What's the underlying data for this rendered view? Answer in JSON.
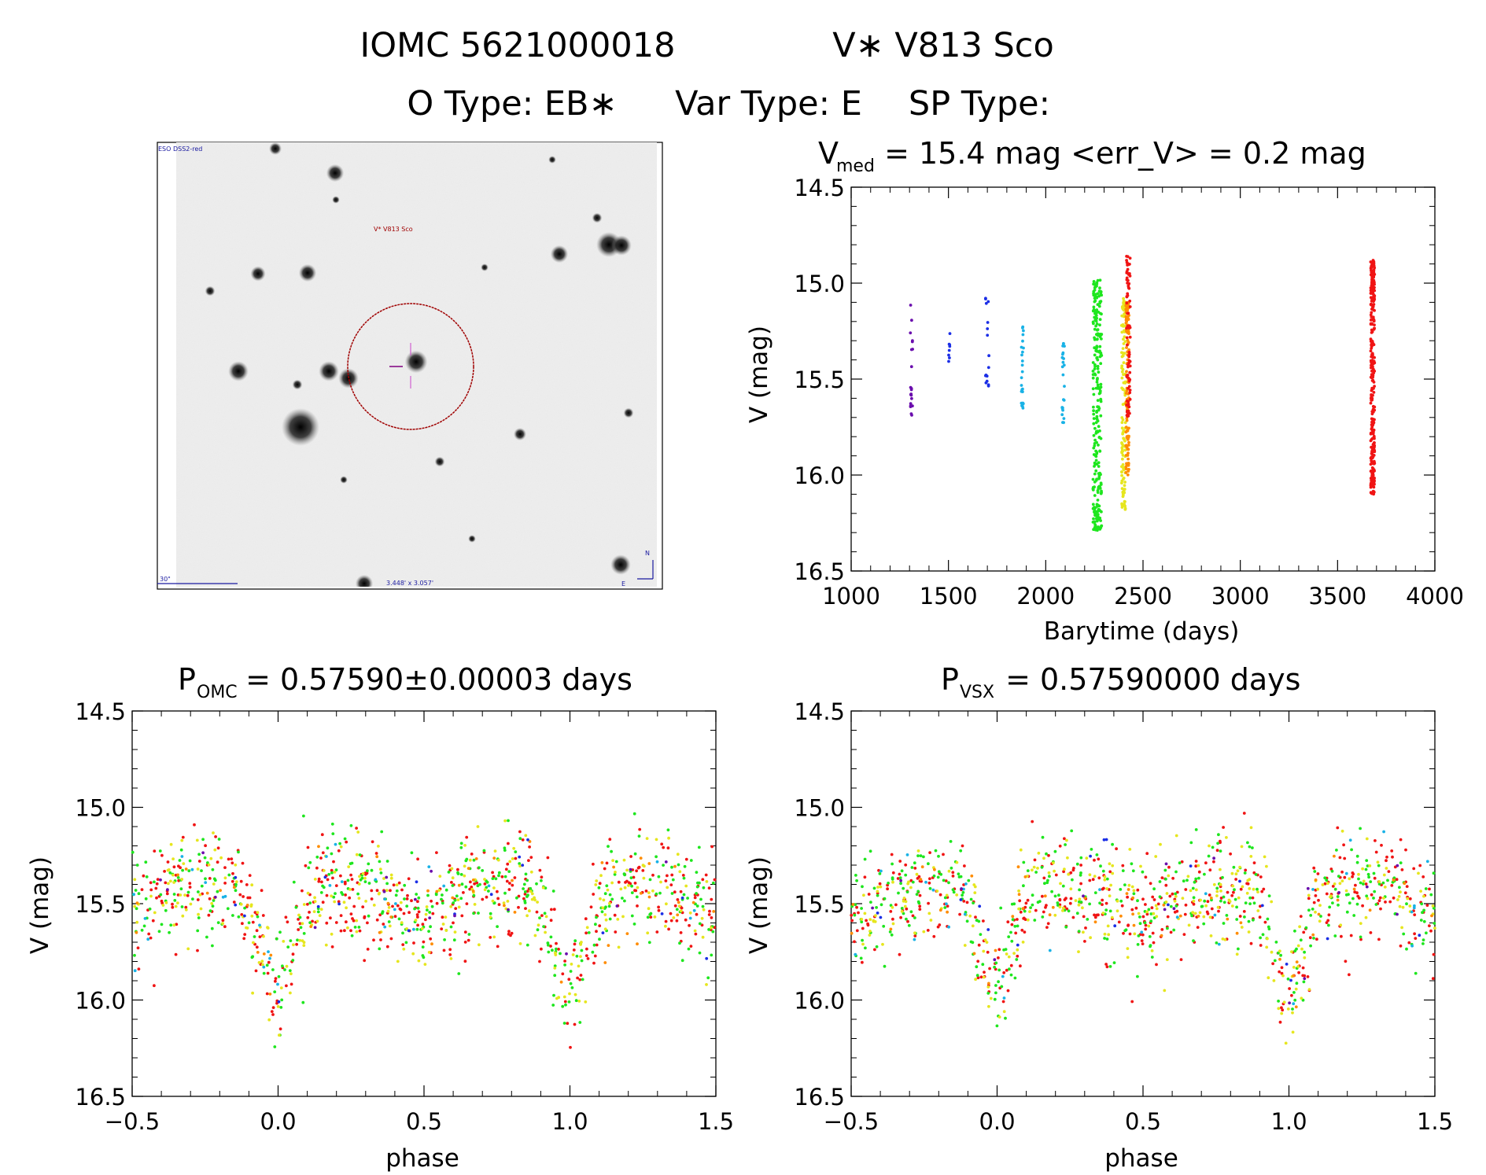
{
  "header": {
    "line1_id": "IOMC 5621000018",
    "line1_name": "V∗ V813 Sco",
    "line2_otype": "O Type: EB∗",
    "line2_vartype": "Var Type: E",
    "line2_sptype": "SP Type:"
  },
  "image_panel": {
    "survey_label": "ESO DSS2-red",
    "object_label": "V* V813 Sco",
    "scale_label": "30\"",
    "fov_label": "3.448' x 3.057'",
    "north_label": "N",
    "east_label": "E"
  },
  "colors": {
    "purple": "#6a0dad",
    "blue": "#1b2ee6",
    "cyan": "#19b2e6",
    "green": "#1ee61e",
    "yellow": "#e6e61e",
    "orange": "#ff8c00",
    "red": "#f01414",
    "dss_text": "#1a1aa0",
    "circle": "#a00000"
  },
  "chart_data": [
    {
      "type": "scatter",
      "title_main": "V",
      "title_sub": "med",
      "title_rest": " = 15.4 mag <err_V> = 0.2 mag",
      "xlabel": "Barytime (days)",
      "ylabel": "V (mag)",
      "xlim": [
        1000,
        4000
      ],
      "ylim": [
        16.5,
        14.5
      ],
      "xticks": [
        "1000",
        "1500",
        "2000",
        "2500",
        "3000",
        "3500",
        "4000"
      ],
      "yticks": [
        "14.5",
        "15.0",
        "15.5",
        "16.0",
        "16.5"
      ],
      "series": [
        {
          "name": "epoch1",
          "color": "#6a0dad",
          "x_center": 1310,
          "x_spread": 6,
          "n": 22,
          "y_min": 15.1,
          "y_max": 15.7
        },
        {
          "name": "epoch2",
          "color": "#1b2ee6",
          "x_center": 1505,
          "x_spread": 4,
          "n": 8,
          "y_min": 15.25,
          "y_max": 15.42
        },
        {
          "name": "epoch3",
          "color": "#1b2ee6",
          "x_center": 1700,
          "x_spread": 10,
          "n": 16,
          "y_min": 15.07,
          "y_max": 15.55
        },
        {
          "name": "epoch4",
          "color": "#19b2e6",
          "x_center": 1880,
          "x_spread": 6,
          "n": 24,
          "y_min": 15.18,
          "y_max": 15.66
        },
        {
          "name": "epoch5",
          "color": "#19b2e6",
          "x_center": 2090,
          "x_spread": 6,
          "n": 24,
          "y_min": 15.3,
          "y_max": 15.73
        },
        {
          "name": "epoch6",
          "color": "#1ee61e",
          "x_center": 2265,
          "x_spread": 22,
          "n": 260,
          "y_min": 14.98,
          "y_max": 16.29
        },
        {
          "name": "epoch7",
          "color": "#e6e61e",
          "x_center": 2400,
          "x_spread": 10,
          "n": 120,
          "y_min": 15.08,
          "y_max": 16.18
        },
        {
          "name": "epoch8",
          "color": "#ff8c00",
          "x_center": 2420,
          "x_spread": 8,
          "n": 120,
          "y_min": 15.1,
          "y_max": 16.0
        },
        {
          "name": "epoch9",
          "color": "#f01414",
          "x_center": 2425,
          "x_spread": 10,
          "n": 80,
          "y_min": 14.86,
          "y_max": 15.7
        },
        {
          "name": "epoch10",
          "color": "#f01414",
          "x_center": 3680,
          "x_spread": 10,
          "n": 300,
          "y_min": 14.88,
          "y_max": 16.1
        }
      ]
    },
    {
      "type": "scatter",
      "title_main": "P",
      "title_sub": "OMC",
      "title_rest": " = 0.57590±0.00003 days",
      "xlabel": "phase",
      "ylabel": "V (mag)",
      "xlim": [
        -0.5,
        1.5
      ],
      "ylim": [
        16.5,
        14.5
      ],
      "xticks": [
        "−0.5",
        "0.0",
        "0.5",
        "1.0",
        "1.5"
      ],
      "yticks": [
        "14.5",
        "15.0",
        "15.5",
        "16.0",
        "16.5"
      ],
      "period_days": 0.5759,
      "model": {
        "baseline_mag": 15.4,
        "primary_min_phase": 0.0,
        "primary_depth": 0.55,
        "secondary_min_phase": 0.5,
        "secondary_depth": 0.15,
        "scatter_mag": 0.18
      },
      "series": [
        {
          "name": "red",
          "color": "#f01414",
          "n": 420
        },
        {
          "name": "green",
          "color": "#1ee61e",
          "n": 380
        },
        {
          "name": "yellow",
          "color": "#e6e61e",
          "n": 260
        },
        {
          "name": "orange",
          "color": "#ff8c00",
          "n": 50
        },
        {
          "name": "cyan",
          "color": "#19b2e6",
          "n": 30
        },
        {
          "name": "blue",
          "color": "#1b2ee6",
          "n": 18
        },
        {
          "name": "purple",
          "color": "#6a0dad",
          "n": 16
        }
      ]
    },
    {
      "type": "scatter",
      "title_main": "P",
      "title_sub": "VSX",
      "title_rest": " = 0.57590000 days",
      "xlabel": "phase",
      "ylabel": "V (mag)",
      "xlim": [
        -0.5,
        1.5
      ],
      "ylim": [
        16.5,
        14.5
      ],
      "xticks": [
        "−0.5",
        "0.0",
        "0.5",
        "1.0",
        "1.5"
      ],
      "yticks": [
        "14.5",
        "15.0",
        "15.5",
        "16.0",
        "16.5"
      ],
      "period_days": 0.5759,
      "model": {
        "baseline_mag": 15.4,
        "primary_min_phase": 0.0,
        "primary_depth": 0.55,
        "secondary_min_phase": 0.5,
        "secondary_depth": 0.15,
        "scatter_mag": 0.18
      },
      "series": [
        {
          "name": "red",
          "color": "#f01414",
          "n": 420
        },
        {
          "name": "green",
          "color": "#1ee61e",
          "n": 380
        },
        {
          "name": "yellow",
          "color": "#e6e61e",
          "n": 260
        },
        {
          "name": "orange",
          "color": "#ff8c00",
          "n": 50
        },
        {
          "name": "cyan",
          "color": "#19b2e6",
          "n": 30
        },
        {
          "name": "blue",
          "color": "#1b2ee6",
          "n": 18
        },
        {
          "name": "purple",
          "color": "#6a0dad",
          "n": 16
        }
      ]
    }
  ]
}
